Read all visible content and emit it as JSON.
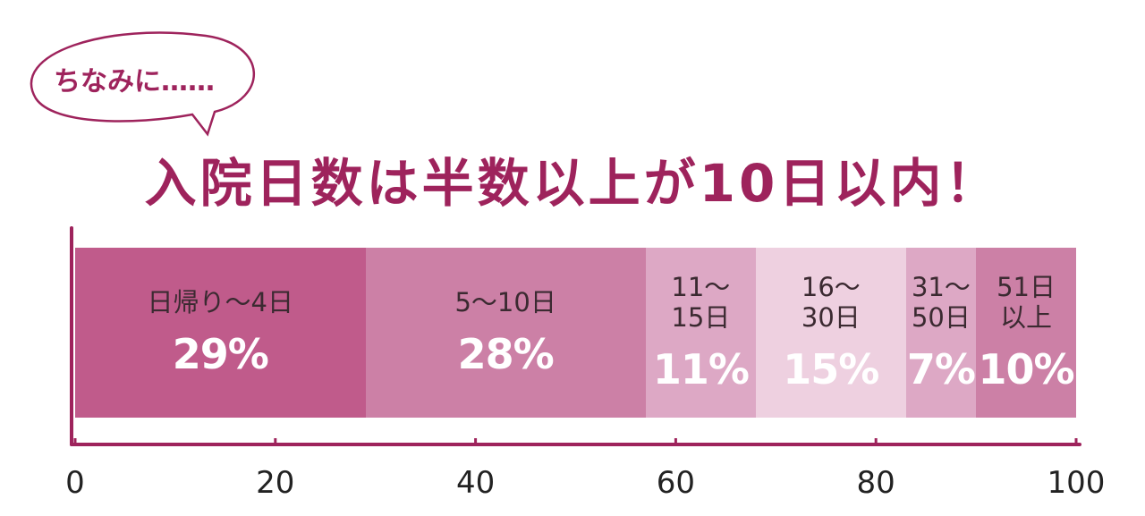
{
  "chart_data": {
    "type": "stacked-bar",
    "annotation": "ちなみに……",
    "title": "入院日数は半数以上が10日以内！",
    "categories": [
      "日帰り～4日",
      "5～10日",
      "11～\n15日",
      "16～\n30日",
      "31～\n50日",
      "51日\n以上"
    ],
    "values": [
      29,
      28,
      11,
      15,
      7,
      10
    ],
    "value_labels": [
      "29%",
      "28%",
      "11%",
      "15%",
      "7%",
      "10%"
    ],
    "colors": [
      "#c05b8b",
      "#cc80a6",
      "#dda8c5",
      "#eed0e0",
      "#dda8c5",
      "#cc80a6"
    ],
    "xlim": [
      0,
      100
    ],
    "xticks": [
      0,
      20,
      40,
      60,
      80,
      100
    ],
    "axis_color": "#9e235c"
  }
}
